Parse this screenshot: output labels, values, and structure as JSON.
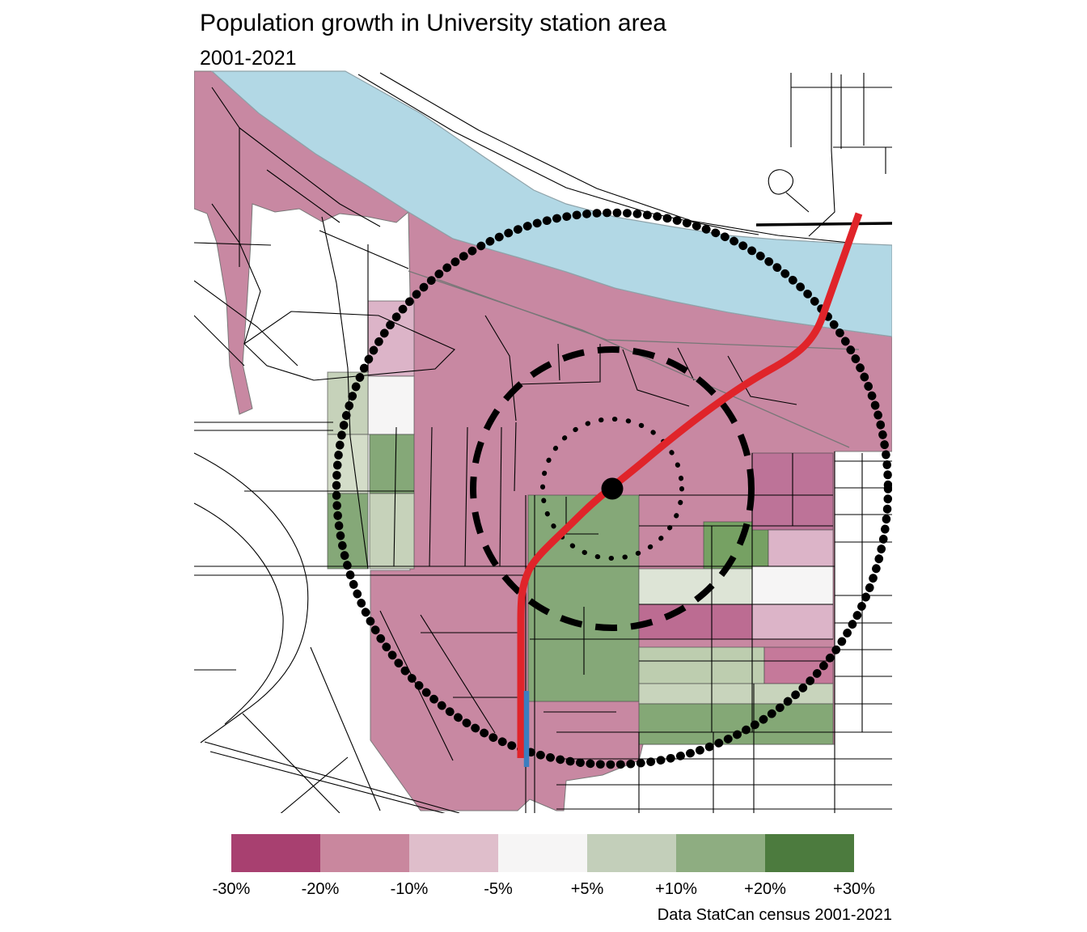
{
  "header": {
    "title": "Population growth in University station area",
    "subtitle": "2001-2021"
  },
  "legend": {
    "labels": [
      "-30%",
      "-20%",
      "-10%",
      "-5%",
      "+5%",
      "+10%",
      "+20%",
      "+30%"
    ],
    "colors": [
      "#a84070",
      "#c9879e",
      "#dfbecb",
      "#f6f5f5",
      "#c3cfba",
      "#8ead81",
      "#4c7b3e"
    ]
  },
  "caption": "Data StatCan census 2001-2021",
  "map": {
    "colors": {
      "river": "#b2d8e5",
      "river_edge": "#8fa3aa",
      "decline_base": "#c888a2",
      "decline_dark": "#bc6c92",
      "decline_col": "#bd7398",
      "decline_light": "#dcb4c8",
      "neutral": "#f6f5f5",
      "growth_pale": "#dde4d6",
      "growth_light": "#c6d2ba",
      "growth_medium": "#85a878",
      "growth_strong": "#76a163",
      "transit_line": "#e0242a",
      "transit_branch": "#3b7ec0",
      "ring": "#000000",
      "street": "#000000",
      "boundary_gray": "#777777"
    }
  }
}
